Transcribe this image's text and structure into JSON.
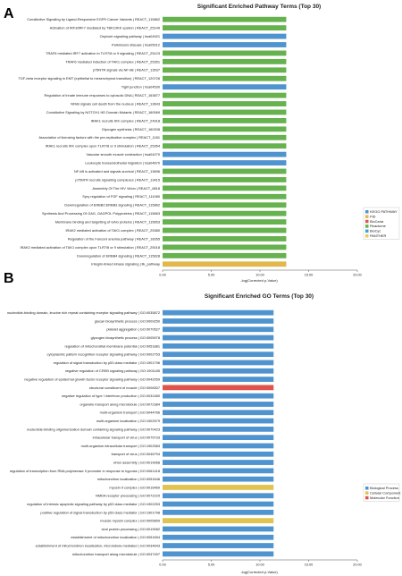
{
  "colors": {
    "kegg": "#4f94cf",
    "pid": "#e0b84c",
    "biocarta": "#d95a50",
    "reactome": "#66b24f",
    "biocyc": "#41a0d6",
    "panther": "#e6cc55",
    "bp": "#4f94cf",
    "cc": "#e0c350",
    "mf": "#e0524a",
    "axis": "#555555",
    "text": "#222222"
  },
  "chart_data": [
    {
      "type": "bar",
      "orientation": "horizontal",
      "panel_label": "A",
      "title": "Significant Enriched Pathway Terms (Top 30)",
      "xlabel": "-log(Corrected p-Value)",
      "ylabel": "",
      "xlim": [
        0,
        20
      ],
      "xticks": [
        "0.00",
        "5.00",
        "10.00",
        "15.00",
        "20.00"
      ],
      "grid": false,
      "legend_position": "right",
      "legend": [
        {
          "name": "KEGG PATHWAY",
          "color_key": "kegg"
        },
        {
          "name": "PID",
          "color_key": "pid"
        },
        {
          "name": "BioCarta",
          "color_key": "biocarta"
        },
        {
          "name": "Reactome",
          "color_key": "reactome"
        },
        {
          "name": "BioCyc",
          "color_key": "biocyc"
        },
        {
          "name": "PANTHER",
          "color_key": "panther"
        }
      ],
      "categories": [
        "Constitutive Signaling by Ligand-Responsive EGFR Cancer Variants | REACT_115862",
        "Activation of IRF3/IRF7 mediated by TBK1/IKK epsilon | REACT_25149",
        "Oxytocin signaling pathway | hsa04921",
        "Parkinsons disease | hsa05012",
        "TRAF6 mediated IRF7 activation in TLR7/8 or 9 signaling | REACT_25123",
        "TRAF6 mediated induction of TAK1 complex | REACT_25351",
        "p75NTR signals via NF-kB | REACT_13537",
        "TGF-beta receptor signaling in EMT (epithelial to mesenchymal transition) | REACT_120726",
        "Tight junction | hsa04530",
        "Regulation of innate immune responses to cytosolic DNA | REACT_163877",
        "NFkB signals cell death from the nucleus | REACT_13643",
        "Constitutive Signaling by NOTCH1 HD Domain Mutants | REACT_160069",
        "IRAK1 recruits IKK complex | REACT_24918",
        "Glycogen synthesis | REACT_160208",
        "Association of licensing factors with the pre-replicative complex | REACT_1181",
        "IRAK1 recruits IKK complex upon TLR7/8 or 9 stimulation | REACT_25354",
        "Vascular smooth muscle contraction | hsa04270",
        "Leukocyte transendothelial migration | hsa04670",
        "NF-kB is activated and signals survival | REACT_13696",
        "p75NTR recruits signalling complexes | REACT_13415",
        "Assembly Of The HIV Virion | REACT_6818",
        "Spry regulation of FGF signaling | REACT_111080",
        "Downregulation of ERBB2:ERBB3 signaling | REACT_115862",
        "Synthesis And Processing Of GAG, GAGPOL Polyproteins | REACT_115663",
        "Membrane binding and targetting of GAG proteins | REACT_115653",
        "IRAK2 mediated activation of TAK1 complex | REACT_25380",
        "Regulation of the Fanconi anemia pathway | REACT_18265",
        "IRAK2 mediated activation of TAK1 complex upon TLR7/8 or 9 stimulation | REACT_25018",
        "Downregulation of ERBB4 signaling | REACT_115628",
        "Integrin-linked kinase signaling | ilk_pathway"
      ],
      "values": [
        12.7,
        12.7,
        12.7,
        12.7,
        12.7,
        12.7,
        12.7,
        12.7,
        12.7,
        12.7,
        12.7,
        12.7,
        12.7,
        12.7,
        12.7,
        12.7,
        12.7,
        12.7,
        12.7,
        12.7,
        12.7,
        12.7,
        12.7,
        12.7,
        12.7,
        12.7,
        12.7,
        12.7,
        12.7,
        12.7
      ],
      "bar_color_keys": [
        "reactome",
        "reactome",
        "kegg",
        "kegg",
        "reactome",
        "reactome",
        "reactome",
        "reactome",
        "kegg",
        "reactome",
        "reactome",
        "reactome",
        "reactome",
        "reactome",
        "reactome",
        "reactome",
        "kegg",
        "kegg",
        "reactome",
        "reactome",
        "reactome",
        "reactome",
        "reactome",
        "reactome",
        "reactome",
        "reactome",
        "reactome",
        "reactome",
        "reactome",
        "pid"
      ]
    },
    {
      "type": "bar",
      "orientation": "horizontal",
      "panel_label": "B",
      "title": "Significant Enriched GO Terms (Top 30)",
      "xlabel": "-log(Corrected p-Value)",
      "ylabel": "",
      "xlim": [
        0,
        20
      ],
      "xticks": [
        "0.00",
        "5.00",
        "10.00",
        "15.00",
        "20.00"
      ],
      "grid": false,
      "legend_position": "right",
      "legend": [
        {
          "name": "Biological Process",
          "color_key": "bp"
        },
        {
          "name": "Cellular Component",
          "color_key": "cc"
        },
        {
          "name": "Molecular Function",
          "color_key": "mf"
        }
      ],
      "categories": [
        "nucleotide-binding domain, leucine rich repeat containing receptor signaling pathway | GO:0035872",
        "glucan biosynthetic process | GO:0009250",
        "platelet aggregation | GO:0070527",
        "glycogen biosynthetic process | GO:0005978",
        "regulation of mitochondrial membrane potential | GO:0051881",
        "cytoplasmic pattern recognition receptor signaling pathway | GO:0002753",
        "regulation of signal transduction by p53 class mediator | GO:1901796",
        "negative regulation of CREB signaling pathway | GO:1901185",
        "negative regulation of epidermal growth factor receptor signaling pathway | GO:0042059",
        "structural constituent of muscle | GO:0008307",
        "negative regulation of type I interferon production | GO:0032480",
        "organelle transport along microtubule | GO:0072384",
        "multi-organism transport | GO:0044766",
        "multi-organism localization | GO:1902579",
        "nucleotide-binding oligomerization domain containing signaling pathway | GO:0070423",
        "intracellular transport of virus | GO:0075733",
        "multi-organism intracellular transport | GO:1902583",
        "transport of virus | GO:0046794",
        "virion assembly | GO:0019068",
        "regulation of transcription from RNA polymerase II promoter in response to hypoxia | GO:0061418",
        "mitochondrion localization | GO:0051646",
        "myosin II complex | GO:0016460",
        "NMDA receptor processing | GO:0072229",
        "regulation of intrinsic apoptotic signaling pathway by p53 class mediator | GO:1902253",
        "positive regulation of signal transduction by p53 class mediator | GO:1901798",
        "muscle myosin complex | GO:0005859",
        "viral protein processing | GO:0019082",
        "establishment of mitochondrion localization | GO:0051654",
        "establishment of mitochondrion localization, microtubule-mediated | GO:0034643",
        "mitochondrion transport along microtubule | GO:0047497"
      ],
      "values": [
        11.4,
        11.4,
        11.4,
        11.4,
        11.4,
        11.4,
        11.4,
        11.4,
        11.4,
        11.4,
        11.4,
        11.4,
        11.4,
        11.4,
        11.4,
        11.4,
        11.4,
        11.4,
        11.4,
        11.4,
        11.4,
        11.4,
        11.4,
        11.4,
        11.4,
        11.4,
        11.4,
        11.4,
        11.4,
        11.4
      ],
      "bar_color_keys": [
        "bp",
        "bp",
        "bp",
        "bp",
        "bp",
        "bp",
        "bp",
        "bp",
        "bp",
        "mf",
        "bp",
        "bp",
        "bp",
        "bp",
        "bp",
        "bp",
        "bp",
        "bp",
        "bp",
        "bp",
        "bp",
        "cc",
        "bp",
        "bp",
        "bp",
        "cc",
        "bp",
        "bp",
        "bp",
        "bp"
      ]
    }
  ]
}
